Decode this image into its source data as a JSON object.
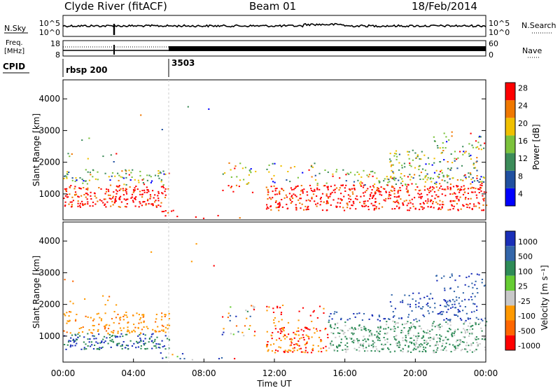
{
  "header": {
    "station": "Clyde River (fitACF)",
    "beam": "Beam 01",
    "date": "18/Feb/2014"
  },
  "noise_panel": {
    "left_label": "N.Sky",
    "right_label": "N.Search",
    "left_ticks": [
      "10^5",
      "10^0"
    ],
    "right_ticks": [
      "10^5",
      "10^0"
    ]
  },
  "freq_panel": {
    "left_label_1": "Freq.",
    "left_label_2": "[MHz]",
    "left_ticks": [
      "18",
      "8"
    ],
    "right_label": "Nave",
    "right_ticks": [
      "60",
      "0"
    ]
  },
  "cpid": {
    "label": "CPID",
    "segments": [
      {
        "start": "00:00",
        "name": "rbsp 200"
      },
      {
        "start": "06:00",
        "name": "3503"
      }
    ]
  },
  "time_axis": {
    "label": "Time UT",
    "ticks": [
      "00:00",
      "04:00",
      "08:00",
      "12:00",
      "16:00",
      "20:00",
      "00:00"
    ]
  },
  "chart_data": [
    {
      "type": "heatmap",
      "title": "",
      "xlabel": "",
      "ylabel": "Slant Range [km]",
      "yticks": [
        "1000",
        "2000",
        "3000",
        "4000"
      ],
      "ylim": [
        180,
        4600
      ],
      "xlim_hours": [
        0,
        24
      ],
      "colorbar_label": "Power [dB]",
      "colorbar_ticks": [
        "4",
        "8",
        "12",
        "16",
        "20",
        "24",
        "28"
      ],
      "colors": [
        "#0000ff",
        "#2050a0",
        "#3c8c5a",
        "#7cc23c",
        "#f0c000",
        "#f07800",
        "#ff0000"
      ]
    },
    {
      "type": "heatmap",
      "title": "",
      "xlabel": "",
      "ylabel": "Slant Range [km]",
      "yticks": [
        "1000",
        "2000",
        "3000",
        "4000"
      ],
      "ylim": [
        180,
        4600
      ],
      "xlim_hours": [
        0,
        24
      ],
      "colorbar_label": "Velocity [m s⁻¹]",
      "colorbar_ticks": [
        "1000",
        "500",
        "100",
        "25",
        "-25",
        "-100",
        "-500",
        "-1000"
      ],
      "colors": [
        "#1a2fb8",
        "#3366aa",
        "#2e8b57",
        "#66cc33",
        "#c8c8c8",
        "#ff9900",
        "#ff6600",
        "#ff0000"
      ]
    }
  ]
}
